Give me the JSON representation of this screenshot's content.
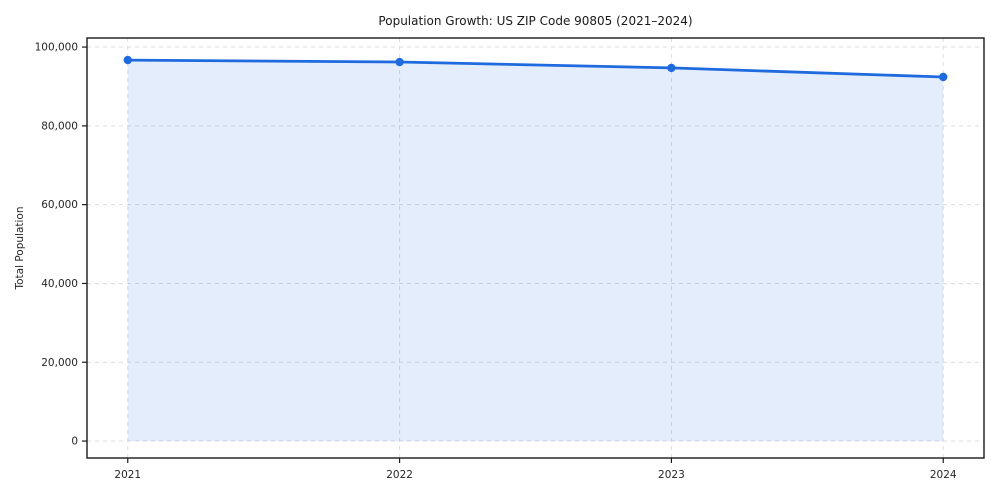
{
  "chart_data": {
    "type": "area",
    "title": "Population Growth: US ZIP Code 90805 (2021–2024)",
    "xlabel": "",
    "ylabel": "Total Population",
    "x": [
      2021,
      2022,
      2023,
      2024
    ],
    "xtick_labels": [
      "2021",
      "2022",
      "2023",
      "2024"
    ],
    "series": [
      {
        "name": "Total Population",
        "values": [
          96700,
          96200,
          94700,
          92400
        ]
      }
    ],
    "yticks": [
      0,
      20000,
      40000,
      60000,
      80000,
      100000
    ],
    "ytick_labels": [
      "0",
      "20,000",
      "40,000",
      "60,000",
      "80,000",
      "100,000"
    ],
    "xlim": [
      2020.85,
      2024.15
    ],
    "ylim": [
      -4300,
      102300
    ],
    "grid": true,
    "grid_style": "dashed",
    "legend_position": "none",
    "fill_baseline": 0,
    "line_color": "#1f6ade",
    "marker_color": "#1f6ade",
    "marker": "circle",
    "fill_color": "rgba(31,106,222,0.12)",
    "grid_color": "#dcdcdc",
    "axis_color": "#1a1a1a",
    "tick_label_color": "#262626",
    "background_color": "#ffffff"
  }
}
